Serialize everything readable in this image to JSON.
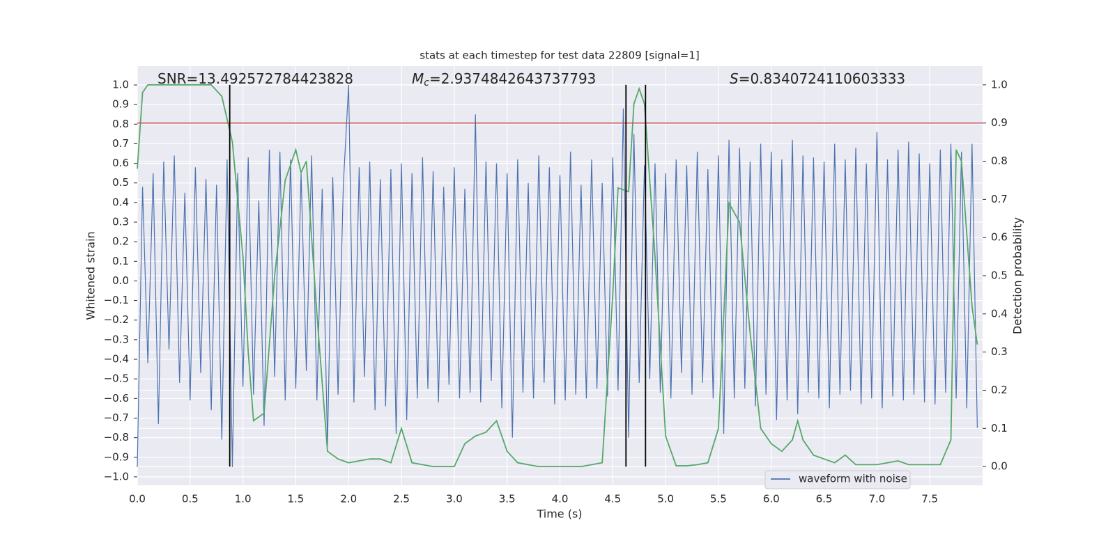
{
  "chart_data": {
    "type": "line",
    "title": "stats at each timestep for test data 22809 [signal=1]",
    "xlabel": "Time (s)",
    "ylabel": "Whitened strain",
    "y2label": "Detection probability",
    "grid": true,
    "legend": "lower right",
    "xlim": [
      0,
      8
    ],
    "ylim": [
      -1.043,
      1.096
    ],
    "y2lim": [
      -0.049,
      1.049
    ],
    "xticks": [
      {
        "value": 0,
        "label": "0.0"
      },
      0.5,
      {
        "value": 1,
        "label": "1.0"
      },
      1.5,
      {
        "value": 2,
        "label": "2.0"
      },
      2.5,
      {
        "value": 3,
        "label": "3.0"
      },
      3.5,
      {
        "value": 4,
        "label": "4.0"
      },
      4.5,
      {
        "value": 5,
        "label": "5.0"
      },
      5.5,
      {
        "value": 6,
        "label": "6.0"
      },
      6.5,
      {
        "value": 7,
        "label": "7.0"
      },
      7.5
    ],
    "yticks": [
      {
        "value": -1,
        "label": "−1.0"
      },
      {
        "value": -0.9,
        "label": "−0.9"
      },
      {
        "value": -0.8,
        "label": "−0.8"
      },
      {
        "value": -0.7,
        "label": "−0.7"
      },
      {
        "value": -0.6,
        "label": "−0.6"
      },
      {
        "value": -0.5,
        "label": "−0.5"
      },
      {
        "value": -0.4,
        "label": "−0.4"
      },
      {
        "value": -0.3,
        "label": "−0.3"
      },
      {
        "value": -0.2,
        "label": "−0.2"
      },
      {
        "value": -0.1,
        "label": "−0.1"
      },
      {
        "value": 0,
        "label": "0.0"
      },
      0.1,
      0.2,
      0.3,
      0.4,
      0.5,
      0.6,
      0.7,
      0.8,
      0.9,
      {
        "value": 1,
        "label": "1.0"
      }
    ],
    "y2ticks": [
      {
        "value": 0,
        "label": "0.0"
      },
      0.1,
      0.2,
      0.3,
      0.4,
      0.5,
      0.6,
      0.7,
      0.8,
      0.9,
      {
        "value": 1,
        "label": "1.0"
      }
    ],
    "annotations": [
      {
        "text": "SNR=13.492572784423828"
      },
      {
        "symbol": "M",
        "subscript": "c",
        "text": "=2.9374842643737793"
      },
      {
        "symbol": "S",
        "text": "=0.8340724110603333"
      }
    ],
    "hlines": [
      {
        "value": 0.9,
        "axis": "y2",
        "color": "#c44e52"
      }
    ],
    "vlines": {
      "values": [
        0.875,
        4.625,
        4.81
      ],
      "axis": "y2",
      "range": [
        0,
        1
      ],
      "color": "#000000"
    },
    "series": [
      {
        "name": "waveform with noise",
        "color": "#4c72b0",
        "x": [
          0,
          0.05,
          0.1,
          0.15,
          0.2,
          0.25,
          0.3,
          0.35,
          0.4,
          0.45,
          0.5,
          0.55,
          0.6,
          0.65,
          0.7,
          0.75,
          0.8,
          0.85,
          0.9,
          0.95,
          1,
          1.05,
          1.1,
          1.15,
          1.2,
          1.25,
          1.3,
          1.35,
          1.4,
          1.45,
          1.5,
          1.55,
          1.6,
          1.65,
          1.7,
          1.75,
          1.8,
          1.85,
          1.9,
          1.95,
          2,
          2.05,
          2.1,
          2.15,
          2.2,
          2.25,
          2.3,
          2.35,
          2.4,
          2.45,
          2.5,
          2.55,
          2.6,
          2.65,
          2.7,
          2.75,
          2.8,
          2.85,
          2.9,
          2.95,
          3,
          3.05,
          3.1,
          3.15,
          3.2,
          3.25,
          3.3,
          3.35,
          3.4,
          3.45,
          3.5,
          3.55,
          3.6,
          3.65,
          3.7,
          3.75,
          3.8,
          3.85,
          3.9,
          3.95,
          4,
          4.05,
          4.1,
          4.15,
          4.2,
          4.25,
          4.3,
          4.35,
          4.4,
          4.45,
          4.5,
          4.55,
          4.6,
          4.65,
          4.7,
          4.75,
          4.8,
          4.85,
          4.9,
          4.95,
          5,
          5.05,
          5.1,
          5.15,
          5.2,
          5.25,
          5.3,
          5.35,
          5.4,
          5.45,
          5.5,
          5.55,
          5.6,
          5.65,
          5.7,
          5.75,
          5.8,
          5.85,
          5.9,
          5.95,
          6,
          6.05,
          6.1,
          6.15,
          6.2,
          6.25,
          6.3,
          6.35,
          6.4,
          6.45,
          6.5,
          6.55,
          6.6,
          6.65,
          6.7,
          6.75,
          6.8,
          6.85,
          6.9,
          6.95,
          7,
          7.05,
          7.1,
          7.15,
          7.2,
          7.25,
          7.3,
          7.35,
          7.4,
          7.45,
          7.5,
          7.55,
          7.6,
          7.65,
          7.7,
          7.75,
          7.8,
          7.85,
          7.9,
          7.95
        ],
        "values": [
          -0.95,
          0.48,
          -0.42,
          0.55,
          -0.73,
          0.61,
          -0.35,
          0.64,
          -0.52,
          0.45,
          -0.61,
          0.58,
          -0.47,
          0.52,
          -0.66,
          0.49,
          -0.81,
          0.62,
          -0.95,
          0.55,
          -0.54,
          0.63,
          -0.58,
          0.41,
          -0.74,
          0.67,
          -0.49,
          0.66,
          -0.61,
          0.62,
          -0.55,
          0.55,
          -0.46,
          0.64,
          -0.61,
          0.47,
          -0.84,
          0.53,
          -0.58,
          0.49,
          1.0,
          -0.62,
          0.58,
          -0.49,
          0.61,
          -0.66,
          0.52,
          -0.64,
          0.57,
          -0.78,
          0.6,
          -0.71,
          0.55,
          -0.6,
          0.63,
          -0.55,
          0.56,
          -0.62,
          0.48,
          -0.53,
          0.58,
          -0.6,
          0.47,
          -0.57,
          0.85,
          -0.62,
          0.61,
          -0.51,
          0.6,
          -0.65,
          0.55,
          -0.8,
          0.62,
          -0.57,
          0.5,
          -0.6,
          0.64,
          -0.52,
          0.58,
          -0.63,
          0.54,
          -0.61,
          0.66,
          -0.58,
          0.49,
          -0.6,
          0.62,
          -0.55,
          0.5,
          -0.59,
          0.63,
          -0.56,
          0.88,
          -0.8,
          0.75,
          -0.52,
          0.59,
          -0.5,
          0.6,
          -0.57,
          0.55,
          -0.6,
          0.62,
          -0.47,
          0.59,
          -0.58,
          0.66,
          -0.52,
          0.57,
          -0.6,
          0.64,
          -0.78,
          0.72,
          -0.6,
          0.68,
          -0.55,
          0.61,
          -0.64,
          0.7,
          -0.58,
          0.66,
          -0.71,
          0.62,
          -0.61,
          0.72,
          -0.68,
          0.64,
          -0.57,
          0.63,
          -0.6,
          0.61,
          -0.65,
          0.7,
          -0.58,
          0.62,
          -0.56,
          0.68,
          -0.63,
          0.6,
          -0.6,
          0.76,
          -0.65,
          0.62,
          -0.59,
          0.67,
          -0.61,
          0.71,
          -0.58,
          0.65,
          -0.62,
          0.6,
          -0.63,
          0.67,
          -0.57,
          0.7,
          -0.6,
          0.66,
          -0.65,
          0.7,
          -0.75
        ]
      },
      {
        "color": "#55a868",
        "axis": "y2",
        "x": [
          0,
          0.05,
          0.1,
          0.2,
          0.3,
          0.4,
          0.5,
          0.6,
          0.7,
          0.8,
          0.9,
          1,
          1.05,
          1.1,
          1.2,
          1.3,
          1.4,
          1.5,
          1.55,
          1.6,
          1.7,
          1.8,
          1.9,
          2,
          2.1,
          2.2,
          2.3,
          2.4,
          2.5,
          2.6,
          2.7,
          2.8,
          3,
          3.1,
          3.2,
          3.3,
          3.4,
          3.5,
          3.6,
          3.8,
          4,
          4.2,
          4.4,
          4.5,
          4.55,
          4.65,
          4.7,
          4.75,
          4.8,
          4.9,
          5,
          5.1,
          5.2,
          5.3,
          5.4,
          5.5,
          5.6,
          5.7,
          5.8,
          5.9,
          6,
          6.1,
          6.2,
          6.25,
          6.3,
          6.4,
          6.5,
          6.6,
          6.7,
          6.8,
          7,
          7.2,
          7.3,
          7.5,
          7.6,
          7.7,
          7.75,
          7.8,
          7.9,
          7.95
        ],
        "values": [
          0.78,
          0.98,
          1.0,
          1.0,
          1.0,
          1.0,
          1.0,
          1.0,
          1.0,
          0.97,
          0.85,
          0.55,
          0.3,
          0.12,
          0.14,
          0.5,
          0.75,
          0.83,
          0.77,
          0.8,
          0.4,
          0.04,
          0.02,
          0.01,
          0.015,
          0.02,
          0.02,
          0.01,
          0.1,
          0.01,
          0.005,
          0.0,
          0.0,
          0.06,
          0.08,
          0.09,
          0.12,
          0.04,
          0.01,
          0.0,
          0.0,
          0.0,
          0.01,
          0.45,
          0.73,
          0.72,
          0.95,
          0.99,
          0.95,
          0.55,
          0.08,
          0.002,
          0.002,
          0.005,
          0.01,
          0.1,
          0.69,
          0.64,
          0.35,
          0.1,
          0.06,
          0.04,
          0.07,
          0.12,
          0.07,
          0.03,
          0.02,
          0.01,
          0.03,
          0.005,
          0.005,
          0.015,
          0.005,
          0.005,
          0.005,
          0.07,
          0.83,
          0.8,
          0.42,
          0.32
        ]
      }
    ]
  }
}
